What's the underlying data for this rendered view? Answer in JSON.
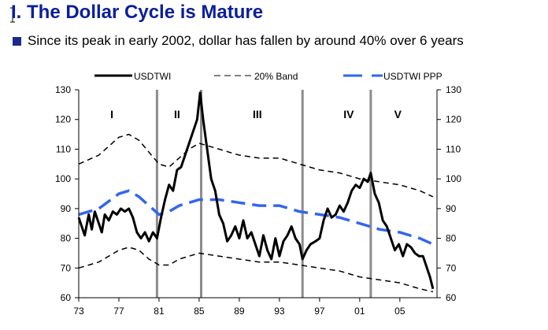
{
  "header": {
    "title": "I. The Dollar Cycle is Mature",
    "bullet": "Since its peak in early 2002, dollar has fallen by around 40% over 6 years",
    "title_color": "#0a1e9c",
    "bullet_color": "#1a2a8c"
  },
  "chart_data": {
    "type": "line",
    "title": "",
    "xlabel": "",
    "ylabel": "",
    "xlim": [
      1973,
      2008.7
    ],
    "ylim": [
      60,
      130
    ],
    "y_ticks": [
      60,
      70,
      80,
      90,
      100,
      110,
      120,
      130
    ],
    "y_tick_labels_left": [
      "60",
      "70",
      "80",
      "90",
      "100",
      "110",
      "120",
      "130"
    ],
    "y_tick_labels_right": [
      "60",
      "70",
      "80",
      "90",
      "100",
      "110",
      "120",
      "130"
    ],
    "x_ticks": [
      1973,
      1977,
      1981,
      1985,
      1989,
      1993,
      1997,
      2001,
      2005
    ],
    "x_tick_labels": [
      "73",
      "77",
      "81",
      "85",
      "89",
      "93",
      "97",
      "01",
      "05"
    ],
    "grid": false,
    "legend_position": "top",
    "legend": [
      {
        "name": "USDTWI",
        "style": "solid",
        "color": "#000000"
      },
      {
        "name": "20% Band",
        "style": "dashed",
        "color": "#000000"
      },
      {
        "name": "USDTWI PPP",
        "style": "dashed",
        "color": "#3366ee"
      }
    ],
    "cycle_dividers": [
      1980.8,
      1985.2,
      1995.3,
      2002.1
    ],
    "cycle_labels": [
      {
        "label": "I",
        "x": 1976.3,
        "y": 122
      },
      {
        "label": "II",
        "x": 1982.8,
        "y": 122
      },
      {
        "label": "III",
        "x": 1990.8,
        "y": 122
      },
      {
        "label": "IV",
        "x": 1999.9,
        "y": 122
      },
      {
        "label": "V",
        "x": 2004.8,
        "y": 122
      }
    ],
    "series": [
      {
        "name": "USDTWI",
        "x": [
          1973.0,
          1973.3,
          1973.6,
          1974.0,
          1974.3,
          1974.6,
          1975.0,
          1975.3,
          1975.6,
          1976.0,
          1976.4,
          1976.8,
          1977.2,
          1977.6,
          1978.0,
          1978.4,
          1978.8,
          1979.2,
          1979.6,
          1980.0,
          1980.4,
          1980.8,
          1981.2,
          1981.6,
          1982.0,
          1982.4,
          1982.8,
          1983.2,
          1983.6,
          1984.0,
          1984.4,
          1984.8,
          1985.1,
          1985.4,
          1985.8,
          1986.2,
          1986.6,
          1987.0,
          1987.4,
          1987.8,
          1988.2,
          1988.6,
          1989.0,
          1989.4,
          1989.8,
          1990.2,
          1990.6,
          1991.0,
          1991.4,
          1991.8,
          1992.2,
          1992.6,
          1993.0,
          1993.4,
          1993.8,
          1994.2,
          1994.6,
          1995.0,
          1995.3,
          1995.7,
          1996.1,
          1996.6,
          1997.0,
          1997.4,
          1997.8,
          1998.2,
          1998.6,
          1999.0,
          1999.4,
          1999.8,
          2000.2,
          2000.6,
          2001.0,
          2001.4,
          2001.8,
          2002.1,
          2002.5,
          2002.9,
          2003.3,
          2003.7,
          2004.1,
          2004.5,
          2004.9,
          2005.3,
          2005.7,
          2006.1,
          2006.5,
          2006.9,
          2007.3,
          2007.7,
          2008.0,
          2008.3
        ],
        "values": [
          87,
          84,
          81,
          88,
          83,
          89,
          85,
          82,
          88,
          86,
          89,
          88,
          90,
          89,
          90,
          87,
          82,
          80,
          82,
          79,
          82,
          80,
          87,
          93,
          98,
          96,
          103,
          104,
          108,
          112,
          116,
          120,
          129,
          120,
          110,
          100,
          96,
          88,
          85,
          79,
          81,
          84,
          80,
          86,
          80,
          82,
          78,
          74,
          81,
          76,
          73,
          80,
          74,
          79,
          81,
          84,
          80,
          78,
          73,
          76,
          78,
          79,
          80,
          86,
          90,
          87,
          88,
          91,
          89,
          92,
          96,
          98,
          97,
          100,
          99,
          102,
          95,
          92,
          86,
          84,
          80,
          76,
          78,
          74,
          78,
          77,
          75,
          74,
          74,
          70,
          67,
          63
        ]
      },
      {
        "name": "20% Band (upper)",
        "x": [
          1973,
          1975,
          1977,
          1978,
          1979,
          1980,
          1981,
          1982,
          1983,
          1984,
          1985,
          1987,
          1989,
          1991,
          1993,
          1995,
          1997,
          1999,
          2001,
          2003,
          2005,
          2007,
          2008.3
        ],
        "values": [
          105,
          108,
          114,
          115,
          113,
          109,
          105,
          104,
          107,
          110,
          112,
          110,
          108,
          107,
          107,
          105,
          103,
          102,
          100,
          99,
          98,
          96,
          94
        ]
      },
      {
        "name": "20% Band (lower)",
        "x": [
          1973,
          1975,
          1977,
          1978,
          1979,
          1980,
          1981,
          1982,
          1983,
          1984,
          1985,
          1987,
          1989,
          1991,
          1993,
          1995,
          1997,
          1999,
          2001,
          2003,
          2005,
          2007,
          2008.3
        ],
        "values": [
          70,
          72,
          76,
          77,
          76,
          73,
          71,
          71,
          73,
          74,
          75,
          74,
          73,
          72,
          72,
          71,
          70,
          69,
          67,
          66,
          65,
          63,
          62
        ]
      },
      {
        "name": "USDTWI PPP",
        "x": [
          1973,
          1975,
          1977,
          1978,
          1979,
          1980,
          1981,
          1982,
          1983,
          1984,
          1985,
          1987,
          1989,
          1991,
          1993,
          1995,
          1997,
          1999,
          2001,
          2003,
          2005,
          2007,
          2008.3
        ],
        "values": [
          88,
          90,
          95,
          96,
          94,
          91,
          88,
          89,
          91,
          92,
          93,
          93,
          92,
          91,
          91,
          89,
          88,
          87,
          85,
          83,
          82,
          80,
          78
        ]
      }
    ]
  }
}
